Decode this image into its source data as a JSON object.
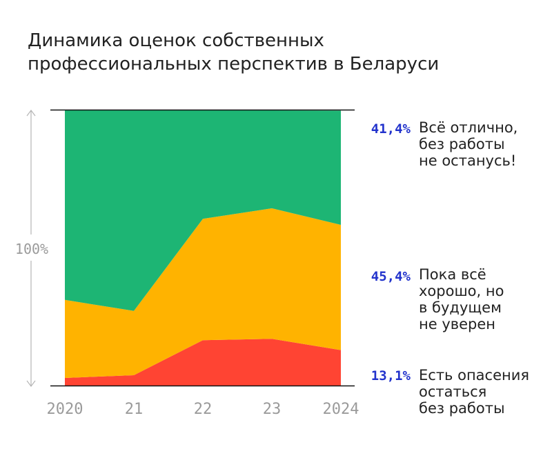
{
  "chart_data": {
    "type": "area",
    "stacked": true,
    "normalized": true,
    "title": "Динамика оценок собственных профессиональных перспектив в Беларуси",
    "x": [
      "2020",
      "21",
      "22",
      "23",
      "2024"
    ],
    "ylabel": "100%",
    "ylim": [
      0,
      100
    ],
    "series": [
      {
        "name": "Есть опасения остаться без работы",
        "label": "Есть опасения\nостаться\nбез работы",
        "values": [
          3.0,
          4.0,
          16.7,
          17.2,
          13.1
        ],
        "color": "#ff4433",
        "end_value": "13,1%",
        "value_color": "#2233cc"
      },
      {
        "name": "Пока всё хорошо, но в будущем не уверен",
        "label": "Пока всё\nхорошо, но\nв будущем\nне уверен",
        "values": [
          28.3,
          23.3,
          44.0,
          47.3,
          45.4
        ],
        "color": "#ffb300",
        "end_value": "45,4%",
        "value_color": "#2233cc"
      },
      {
        "name": "Всё отлично, без работы не останусь!",
        "label": "Всё отлично,\nбез работы\nне останусь!",
        "values": [
          68.7,
          72.7,
          39.3,
          35.5,
          41.4
        ],
        "color": "#1db574",
        "end_value": "41,4%",
        "value_color": "#2233cc"
      }
    ]
  }
}
